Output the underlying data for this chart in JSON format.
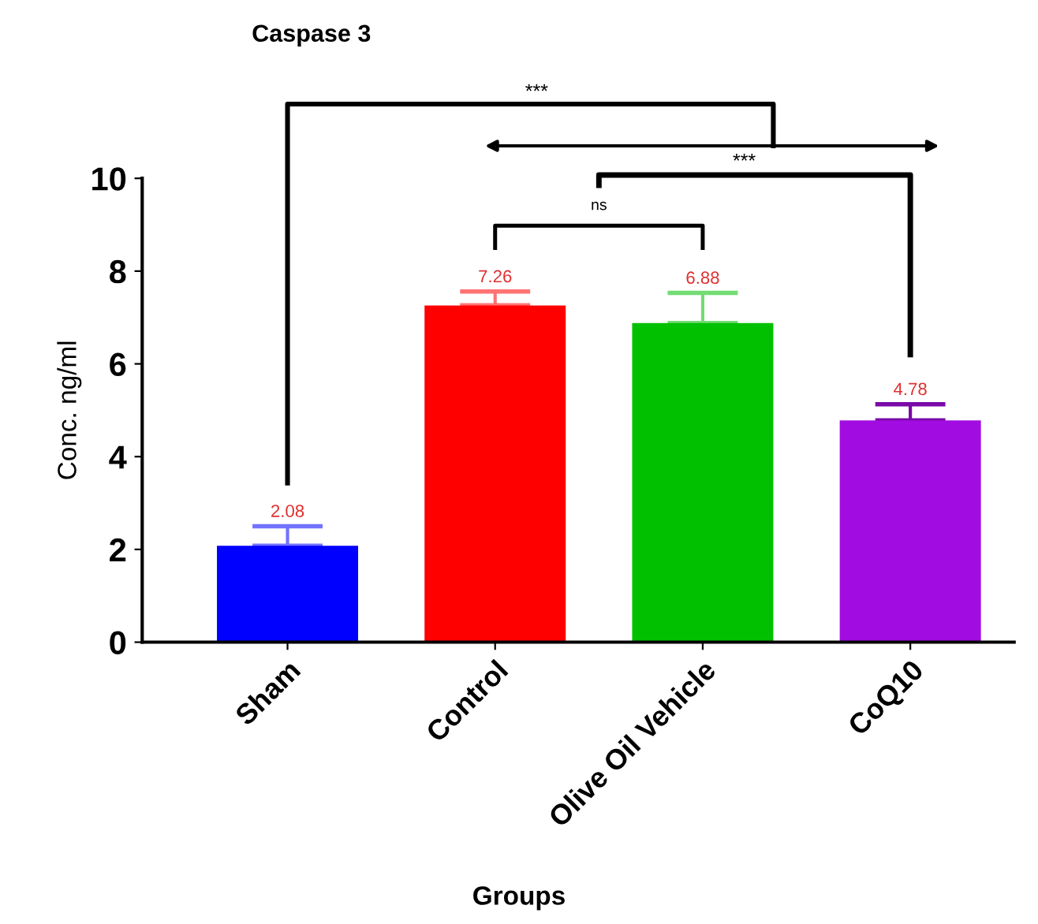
{
  "chart_data": {
    "type": "bar",
    "title": "Caspase 3",
    "xlabel": "Groups",
    "ylabel": "Conc. ng/ml",
    "categories": [
      "Sham",
      "Control",
      "Olive Oil Vehicle",
      "CoQ10"
    ],
    "values": [
      2.08,
      7.26,
      6.88,
      4.78
    ],
    "errors": [
      0.42,
      0.3,
      0.65,
      0.35
    ],
    "colors": [
      "#0000ff",
      "#ff0000",
      "#00c000",
      "#a10ce0"
    ],
    "data_labels": true,
    "ylim": [
      0,
      10
    ],
    "yticks": [
      0,
      2,
      4,
      6,
      8,
      10
    ],
    "annotations": [
      "***",
      "***",
      "ns"
    ],
    "grid": false,
    "legend": false
  }
}
